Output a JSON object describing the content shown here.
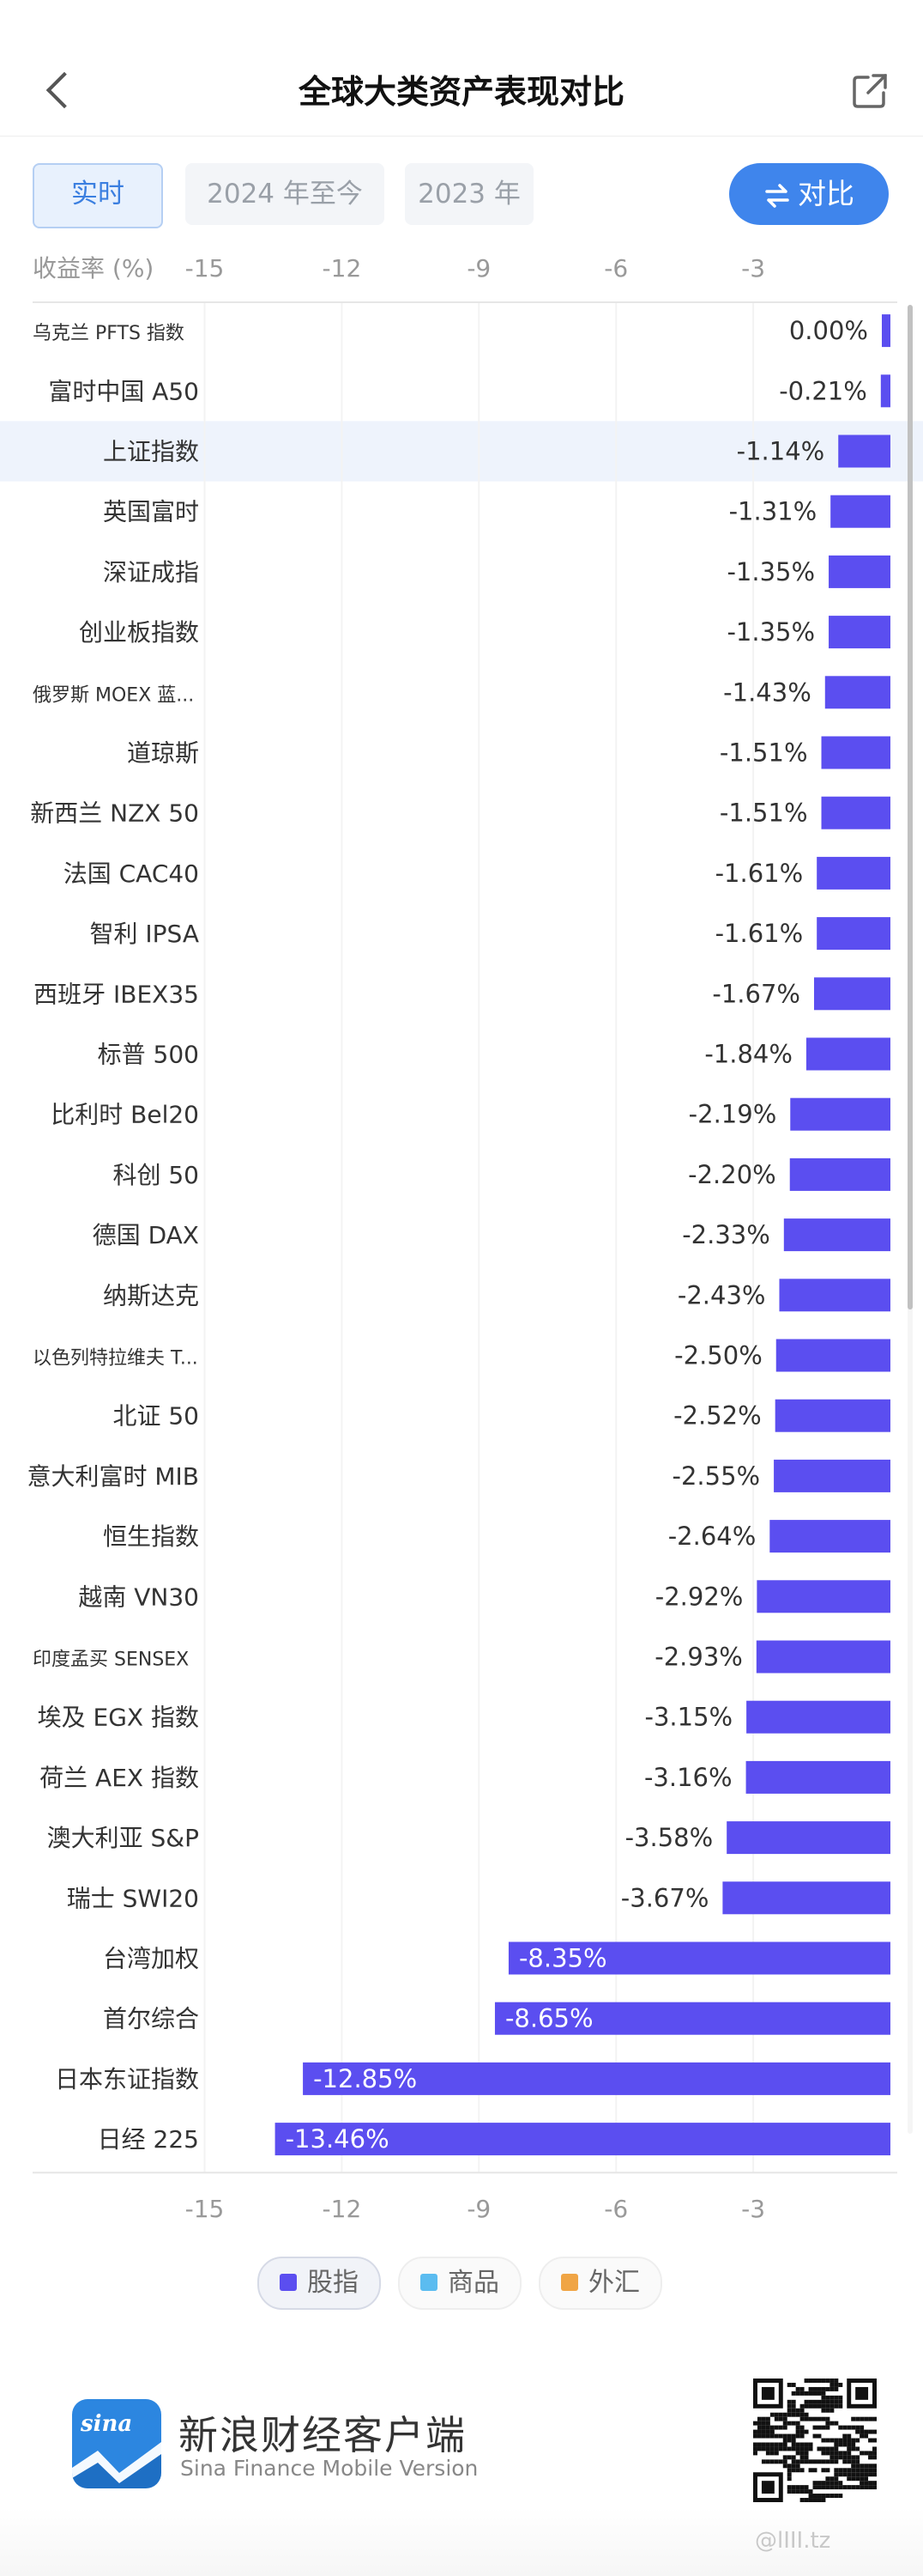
{
  "header": {
    "title": "全球大类资产表现对比"
  },
  "tabs": [
    {
      "label": "实时",
      "active": true
    },
    {
      "label": "2024 年至今",
      "active": false
    },
    {
      "label": "2023 年",
      "active": false
    }
  ],
  "compare_button": {
    "label": "对比"
  },
  "chart_data": {
    "type": "bar",
    "orientation": "horizontal",
    "ylabel": "收益率 (%)",
    "xlim": [
      -15,
      0
    ],
    "ticks": [
      -15,
      -12,
      -9,
      -6,
      -3
    ],
    "grid": true,
    "bar_color": "#5b4ef0",
    "highlight_row": "上证指数",
    "categories": [
      "乌克兰 PFTS 指数",
      "富时中国 A50",
      "上证指数",
      "英国富时",
      "深证成指",
      "创业板指数",
      "俄罗斯 MOEX 蓝...",
      "道琼斯",
      "新西兰 NZX 50",
      "法国 CAC40",
      "智利 IPSA",
      "西班牙 IBEX35",
      "标普 500",
      "比利时 Bel20",
      "科创 50",
      "德国 DAX",
      "纳斯达克",
      "以色列特拉维夫 T...",
      "北证 50",
      "意大利富时 MIB",
      "恒生指数",
      "越南 VN30",
      "印度孟买 SENSEX",
      "埃及 EGX 指数",
      "荷兰 AEX 指数",
      "澳大利亚 S&P",
      "瑞士 SWI20",
      "台湾加权",
      "首尔综合",
      "日本东证指数",
      "日经 225"
    ],
    "values": [
      0.0,
      -0.21,
      -1.14,
      -1.31,
      -1.35,
      -1.35,
      -1.43,
      -1.51,
      -1.51,
      -1.61,
      -1.61,
      -1.67,
      -1.84,
      -2.19,
      -2.2,
      -2.33,
      -2.43,
      -2.5,
      -2.52,
      -2.55,
      -2.64,
      -2.92,
      -2.93,
      -3.15,
      -3.16,
      -3.58,
      -3.67,
      -8.35,
      -8.65,
      -12.85,
      -13.46
    ],
    "value_labels": [
      "0.00%",
      "-0.21%",
      "-1.14%",
      "-1.31%",
      "-1.35%",
      "-1.35%",
      "-1.43%",
      "-1.51%",
      "-1.51%",
      "-1.61%",
      "-1.61%",
      "-1.67%",
      "-1.84%",
      "-2.19%",
      "-2.20%",
      "-2.33%",
      "-2.43%",
      "-2.50%",
      "-2.52%",
      "-2.55%",
      "-2.64%",
      "-2.92%",
      "-2.93%",
      "-3.15%",
      "-3.16%",
      "-3.58%",
      "-3.67%",
      "-8.35%",
      "-8.65%",
      "-12.85%",
      "-13.46%"
    ],
    "legend": [
      {
        "name": "股指",
        "color": "#5b4ef0",
        "active": true
      },
      {
        "name": "商品",
        "color": "#5bbcf0",
        "active": false
      },
      {
        "name": "外汇",
        "color": "#f0a545",
        "active": false
      }
    ]
  },
  "footer": {
    "logo_text": "sina",
    "brand_cn": "新浪财经客户端",
    "brand_en": "Sina Finance Mobile Version",
    "watermark": "@lIII.tz"
  }
}
